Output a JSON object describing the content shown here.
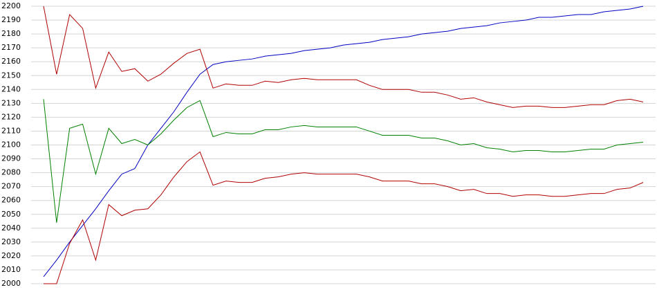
{
  "chart_data": {
    "type": "line",
    "ylim": [
      2000,
      2200
    ],
    "yticks": [
      2000,
      2010,
      2020,
      2030,
      2040,
      2050,
      2060,
      2070,
      2080,
      2090,
      2100,
      2110,
      2120,
      2130,
      2140,
      2150,
      2160,
      2170,
      2180,
      2190,
      2200
    ],
    "grid": true,
    "series": [
      {
        "color": "#0000c0",
        "values": [
          2005,
          2017,
          2030,
          2042,
          2054,
          2067,
          2079,
          2083,
          2100,
          2112,
          2124,
          2138,
          2151,
          2158,
          2160,
          2161,
          2162,
          2164,
          2165,
          2166,
          2168,
          2169,
          2170,
          2172,
          2173,
          2174,
          2176,
          2177,
          2178,
          2180,
          2181,
          2182,
          2184,
          2185,
          2186,
          2188,
          2189,
          2190,
          2192,
          2192,
          2193,
          2194,
          2194,
          2196,
          2197,
          2198,
          2200
        ]
      },
      {
        "color": "#b00000",
        "values": [
          2200,
          2151,
          2194,
          2184,
          2141,
          2167,
          2153,
          2155,
          2146,
          2151,
          2159,
          2166,
          2169,
          2141,
          2144,
          2143,
          2143,
          2146,
          2145,
          2147,
          2148,
          2147,
          2147,
          2147,
          2147,
          2143,
          2140,
          2140,
          2140,
          2138,
          2138,
          2136,
          2133,
          2134,
          2131,
          2129,
          2127,
          2128,
          2128,
          2127,
          2127,
          2128,
          2129,
          2129,
          2132,
          2133,
          2131
        ]
      },
      {
        "color": "#008000",
        "values": [
          2133,
          2044,
          2112,
          2115,
          2079,
          2112,
          2101,
          2104,
          2100,
          2108,
          2118,
          2127,
          2132,
          2106,
          2109,
          2108,
          2108,
          2111,
          2111,
          2113,
          2114,
          2113,
          2113,
          2113,
          2113,
          2110,
          2107,
          2107,
          2107,
          2105,
          2105,
          2103,
          2100,
          2101,
          2098,
          2097,
          2095,
          2096,
          2096,
          2095,
          2095,
          2096,
          2097,
          2097,
          2100,
          2101,
          2102
        ]
      },
      {
        "color": "#b00000",
        "values": [
          2000,
          2000,
          2029,
          2046,
          2017,
          2057,
          2049,
          2053,
          2054,
          2064,
          2077,
          2088,
          2095,
          2071,
          2074,
          2073,
          2073,
          2076,
          2077,
          2079,
          2080,
          2079,
          2079,
          2079,
          2079,
          2077,
          2074,
          2074,
          2074,
          2072,
          2072,
          2070,
          2067,
          2068,
          2065,
          2065,
          2063,
          2064,
          2064,
          2063,
          2063,
          2064,
          2065,
          2065,
          2068,
          2069,
          2073
        ]
      }
    ]
  }
}
